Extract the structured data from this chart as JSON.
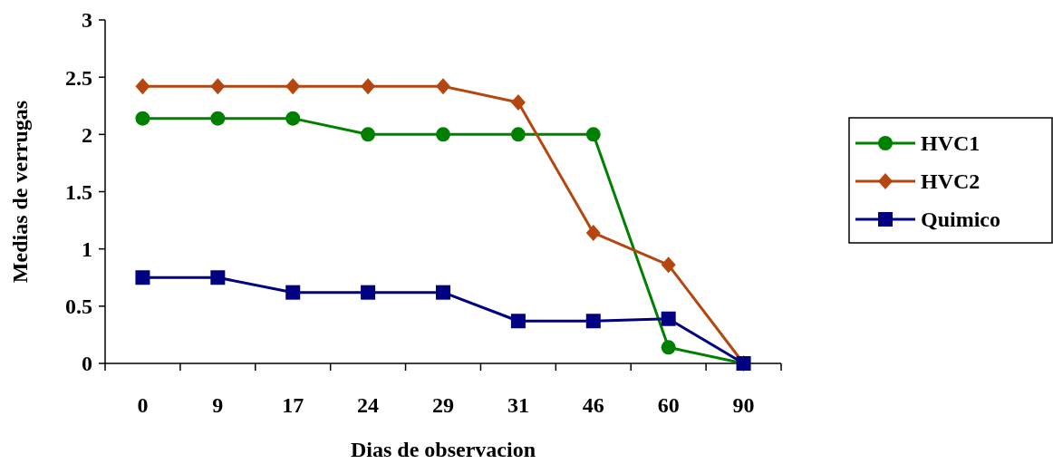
{
  "chart_data": {
    "type": "line",
    "xlabel": "Dias de observacion",
    "ylabel": "Medias de verrugas",
    "categories": [
      "0",
      "9",
      "17",
      "24",
      "29",
      "31",
      "46",
      "60",
      "90"
    ],
    "series": [
      {
        "name": "HVC1",
        "color": "#008000",
        "marker": "circle",
        "values": [
          2.14,
          2.14,
          2.14,
          2,
          2,
          2,
          2,
          0.14,
          0
        ]
      },
      {
        "name": "HVC2",
        "color": "#b5460f",
        "marker": "diamond",
        "values": [
          2.42,
          2.42,
          2.42,
          2.42,
          2.42,
          2.28,
          1.14,
          0.86,
          0
        ]
      },
      {
        "name": "Quimico",
        "color": "#000080",
        "marker": "square",
        "values": [
          0.75,
          0.75,
          0.62,
          0.62,
          0.62,
          0.37,
          0.37,
          0.39,
          0
        ]
      }
    ],
    "ylim": [
      0,
      3
    ],
    "yticks": [
      0,
      0.5,
      1,
      1.5,
      2,
      2.5,
      3
    ],
    "grid": false,
    "legend": "right"
  }
}
